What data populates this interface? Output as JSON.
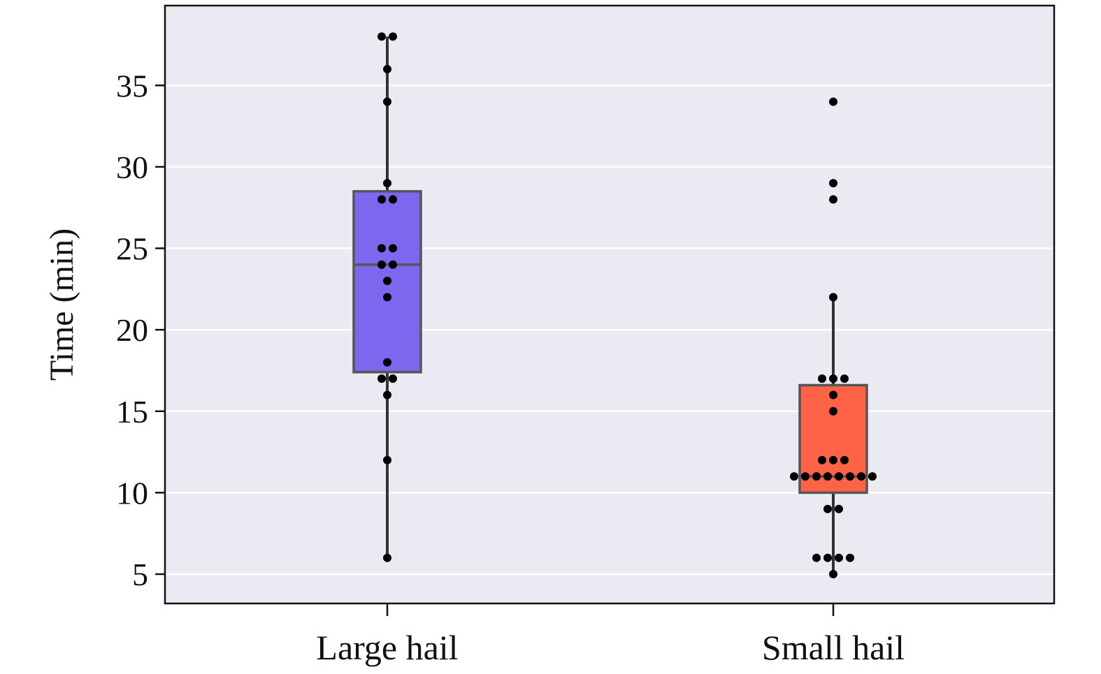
{
  "chart_data": {
    "type": "boxplot",
    "title": "",
    "xlabel": "",
    "ylabel": "Time (min)",
    "ylim": [
      3.2,
      39.9
    ],
    "yticks": [
      5,
      10,
      15,
      20,
      25,
      30,
      35
    ],
    "grid": true,
    "categories": [
      "Large hail",
      "Small hail"
    ],
    "series": [
      {
        "name": "Large hail",
        "color": "#7B68EE",
        "box": {
          "whisker_low": 6,
          "q1": 17.4,
          "median": 24,
          "q3": 28.5,
          "whisker_high": 38
        },
        "points": [
          38,
          38,
          36,
          34,
          29,
          28,
          28,
          25,
          25,
          24,
          24,
          23,
          22,
          18,
          17,
          17,
          16,
          12,
          6
        ]
      },
      {
        "name": "Small hail",
        "color": "#FF6347",
        "box": {
          "whisker_low": 5,
          "q1": 10,
          "median": 11,
          "q3": 16.6,
          "whisker_high": 22
        },
        "points": [
          34,
          29,
          28,
          22,
          17,
          17,
          17,
          16,
          15,
          12,
          12,
          12,
          11,
          11,
          11,
          11,
          11,
          11,
          11,
          11,
          9,
          9,
          6,
          6,
          6,
          6,
          5
        ]
      }
    ]
  },
  "colors": {
    "background": "#EAEAF2",
    "grid": "#FFFFFF",
    "box_edge": "#555555",
    "whisker": "#333333",
    "point": "#000000"
  }
}
